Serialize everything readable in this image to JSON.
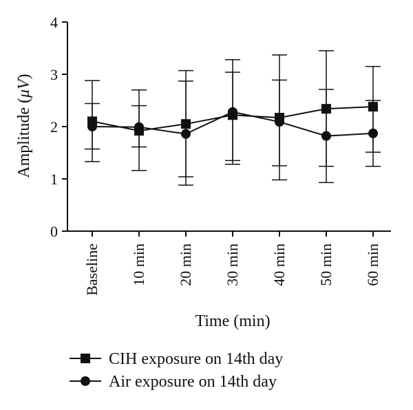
{
  "chart_data": {
    "type": "line",
    "title": "",
    "xlabel": "Time (min)",
    "ylabel_main": "Amplitude (",
    "ylabel_unit": "μV",
    "ylabel_close": ")",
    "categories": [
      "Baseline",
      "10 min",
      "20 min",
      "30 min",
      "40 min",
      "50 min",
      "60 min"
    ],
    "ylim": [
      0,
      4
    ],
    "yticks": [
      0,
      1,
      2,
      3,
      4
    ],
    "ytick_labels": [
      "0",
      "1",
      "2",
      "3",
      "4"
    ],
    "grid": false,
    "legend_position": "bottom",
    "series": [
      {
        "name": "CIH exposure on 14th day",
        "marker": "square",
        "color": "#111111",
        "values": [
          2.1,
          1.92,
          2.05,
          2.22,
          2.17,
          2.34,
          2.38
        ],
        "error_upper": [
          2.88,
          2.7,
          3.07,
          3.28,
          3.37,
          3.45,
          3.15
        ],
        "error_lower": [
          1.33,
          1.16,
          1.04,
          1.35,
          0.98,
          1.24,
          1.24
        ]
      },
      {
        "name": "Air exposure on 14th day",
        "marker": "circle",
        "color": "#111111",
        "values": [
          2.0,
          1.99,
          1.86,
          2.28,
          2.09,
          1.82,
          1.87
        ],
        "error_upper": [
          2.44,
          2.4,
          2.87,
          3.04,
          2.89,
          2.71,
          2.5
        ],
        "error_lower": [
          1.57,
          1.61,
          0.88,
          1.28,
          1.25,
          0.93,
          1.51
        ]
      }
    ]
  }
}
